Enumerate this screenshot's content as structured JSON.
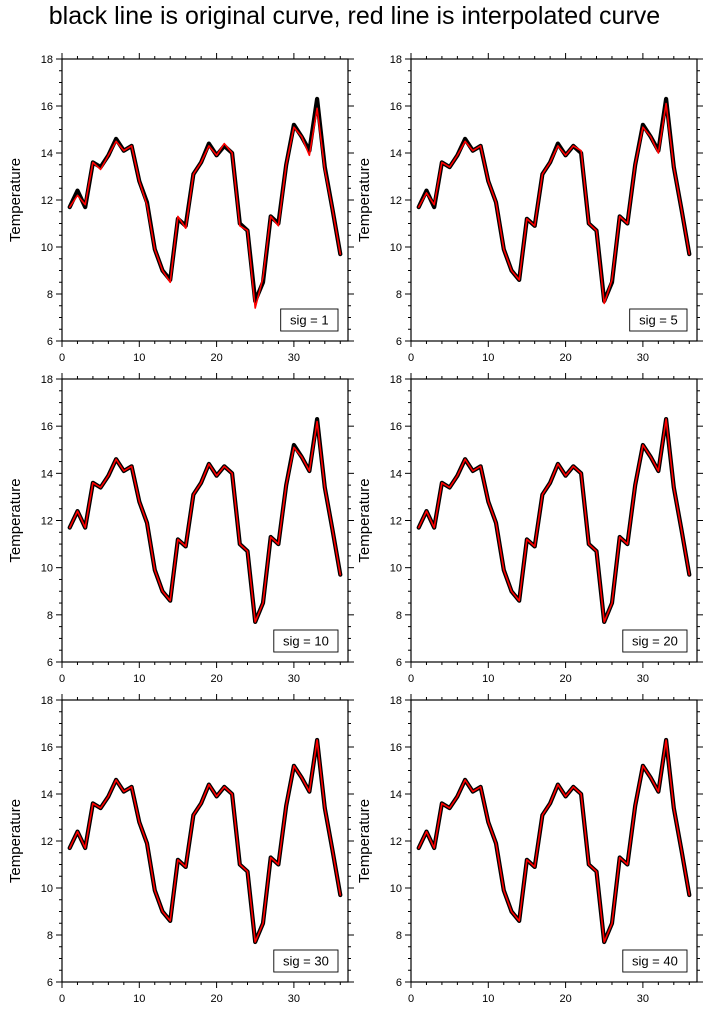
{
  "title": "black line is original curve, red line is interpolated curve",
  "colors": {
    "original": "#000000",
    "interpolated": "#ff0000"
  },
  "chart_data": [
    {
      "type": "line",
      "label": "sig = 1",
      "ylabel": "Temperature",
      "xlim": [
        0,
        37
      ],
      "ylim": [
        6,
        18
      ],
      "xticks": [
        0,
        10,
        20,
        30
      ],
      "yticks": [
        6,
        8,
        10,
        12,
        14,
        16,
        18
      ],
      "series": [
        {
          "role": "original",
          "x": [
            1,
            2,
            3,
            4,
            5,
            6,
            7,
            8,
            9,
            10,
            11,
            12,
            13,
            14,
            15,
            16,
            17,
            18,
            19,
            20,
            21,
            22,
            23,
            24,
            25,
            26,
            27,
            28,
            29,
            30,
            31,
            32,
            33,
            34,
            35,
            36
          ],
          "values": [
            11.7,
            12.4,
            11.7,
            13.6,
            13.4,
            13.9,
            14.6,
            14.1,
            14.3,
            12.8,
            11.9,
            9.9,
            9.0,
            8.6,
            11.2,
            10.9,
            13.1,
            13.6,
            14.4,
            13.9,
            14.3,
            14.0,
            11.0,
            10.7,
            7.7,
            8.5,
            11.3,
            11.0,
            13.5,
            15.2,
            14.7,
            14.1,
            16.3,
            13.4,
            11.6,
            9.7
          ]
        },
        {
          "role": "interpolated",
          "x": [
            1,
            2,
            3,
            4,
            5,
            6,
            7,
            8,
            9,
            10,
            11,
            12,
            13,
            14,
            15,
            16,
            17,
            18,
            19,
            20,
            21,
            22,
            23,
            24,
            25,
            26,
            27,
            28,
            29,
            30,
            31,
            32,
            33,
            34,
            35,
            36
          ],
          "values": [
            11.7,
            12.2,
            11.8,
            13.6,
            13.3,
            13.9,
            14.5,
            14.1,
            14.3,
            12.8,
            11.8,
            9.9,
            9.0,
            8.5,
            11.3,
            10.8,
            13.1,
            13.6,
            14.3,
            13.9,
            14.4,
            14.0,
            10.9,
            10.7,
            7.4,
            8.7,
            11.3,
            10.9,
            13.5,
            15.1,
            14.7,
            13.9,
            15.9,
            13.3,
            11.6,
            9.7
          ]
        }
      ]
    },
    {
      "type": "line",
      "label": "sig = 5",
      "ylabel": "Temperature",
      "xlim": [
        0,
        37
      ],
      "ylim": [
        6,
        18
      ],
      "xticks": [
        0,
        10,
        20,
        30
      ],
      "yticks": [
        6,
        8,
        10,
        12,
        14,
        16,
        18
      ],
      "series": [
        {
          "role": "original",
          "x": [
            1,
            2,
            3,
            4,
            5,
            6,
            7,
            8,
            9,
            10,
            11,
            12,
            13,
            14,
            15,
            16,
            17,
            18,
            19,
            20,
            21,
            22,
            23,
            24,
            25,
            26,
            27,
            28,
            29,
            30,
            31,
            32,
            33,
            34,
            35,
            36
          ],
          "values": [
            11.7,
            12.4,
            11.7,
            13.6,
            13.4,
            13.9,
            14.6,
            14.1,
            14.3,
            12.8,
            11.9,
            9.9,
            9.0,
            8.6,
            11.2,
            10.9,
            13.1,
            13.6,
            14.4,
            13.9,
            14.3,
            14.0,
            11.0,
            10.7,
            7.7,
            8.5,
            11.3,
            11.0,
            13.5,
            15.2,
            14.7,
            14.1,
            16.3,
            13.4,
            11.6,
            9.7
          ]
        },
        {
          "role": "interpolated",
          "x": [
            1,
            2,
            3,
            4,
            5,
            6,
            7,
            8,
            9,
            10,
            11,
            12,
            13,
            14,
            15,
            16,
            17,
            18,
            19,
            20,
            21,
            22,
            23,
            24,
            25,
            26,
            27,
            28,
            29,
            30,
            31,
            32,
            33,
            34,
            35,
            36
          ],
          "values": [
            11.7,
            12.3,
            11.8,
            13.6,
            13.4,
            13.9,
            14.5,
            14.1,
            14.3,
            12.8,
            11.9,
            9.9,
            9.0,
            8.6,
            11.2,
            10.9,
            13.1,
            13.6,
            14.3,
            13.9,
            14.3,
            14.1,
            11.0,
            10.7,
            7.6,
            8.6,
            11.3,
            11.0,
            13.5,
            15.1,
            14.7,
            14.0,
            16.1,
            13.4,
            11.6,
            9.7
          ]
        }
      ]
    },
    {
      "type": "line",
      "label": "sig = 10",
      "ylabel": "Temperature",
      "xlim": [
        0,
        37
      ],
      "ylim": [
        6,
        18
      ],
      "xticks": [
        0,
        10,
        20,
        30
      ],
      "yticks": [
        6,
        8,
        10,
        12,
        14,
        16,
        18
      ],
      "series": [
        {
          "role": "original",
          "x": [
            1,
            2,
            3,
            4,
            5,
            6,
            7,
            8,
            9,
            10,
            11,
            12,
            13,
            14,
            15,
            16,
            17,
            18,
            19,
            20,
            21,
            22,
            23,
            24,
            25,
            26,
            27,
            28,
            29,
            30,
            31,
            32,
            33,
            34,
            35,
            36
          ],
          "values": [
            11.7,
            12.4,
            11.7,
            13.6,
            13.4,
            13.9,
            14.6,
            14.1,
            14.3,
            12.8,
            11.9,
            9.9,
            9.0,
            8.6,
            11.2,
            10.9,
            13.1,
            13.6,
            14.4,
            13.9,
            14.3,
            14.0,
            11.0,
            10.7,
            7.7,
            8.5,
            11.3,
            11.0,
            13.5,
            15.2,
            14.7,
            14.1,
            16.3,
            13.4,
            11.6,
            9.7
          ]
        },
        {
          "role": "interpolated",
          "x": [
            1,
            2,
            3,
            4,
            5,
            6,
            7,
            8,
            9,
            10,
            11,
            12,
            13,
            14,
            15,
            16,
            17,
            18,
            19,
            20,
            21,
            22,
            23,
            24,
            25,
            26,
            27,
            28,
            29,
            30,
            31,
            32,
            33,
            34,
            35,
            36
          ],
          "values": [
            11.7,
            12.4,
            11.7,
            13.6,
            13.4,
            13.9,
            14.6,
            14.1,
            14.3,
            12.8,
            11.9,
            9.9,
            9.0,
            8.6,
            11.2,
            10.9,
            13.1,
            13.6,
            14.4,
            13.9,
            14.3,
            14.0,
            11.0,
            10.7,
            7.7,
            8.5,
            11.3,
            11.0,
            13.5,
            15.1,
            14.7,
            14.1,
            16.2,
            13.4,
            11.6,
            9.7
          ]
        }
      ]
    },
    {
      "type": "line",
      "label": "sig = 20",
      "ylabel": "Temperature",
      "xlim": [
        0,
        37
      ],
      "ylim": [
        6,
        18
      ],
      "xticks": [
        0,
        10,
        20,
        30
      ],
      "yticks": [
        6,
        8,
        10,
        12,
        14,
        16,
        18
      ],
      "series": [
        {
          "role": "original",
          "x": [
            1,
            2,
            3,
            4,
            5,
            6,
            7,
            8,
            9,
            10,
            11,
            12,
            13,
            14,
            15,
            16,
            17,
            18,
            19,
            20,
            21,
            22,
            23,
            24,
            25,
            26,
            27,
            28,
            29,
            30,
            31,
            32,
            33,
            34,
            35,
            36
          ],
          "values": [
            11.7,
            12.4,
            11.7,
            13.6,
            13.4,
            13.9,
            14.6,
            14.1,
            14.3,
            12.8,
            11.9,
            9.9,
            9.0,
            8.6,
            11.2,
            10.9,
            13.1,
            13.6,
            14.4,
            13.9,
            14.3,
            14.0,
            11.0,
            10.7,
            7.7,
            8.5,
            11.3,
            11.0,
            13.5,
            15.2,
            14.7,
            14.1,
            16.3,
            13.4,
            11.6,
            9.7
          ]
        },
        {
          "role": "interpolated",
          "x": [
            1,
            2,
            3,
            4,
            5,
            6,
            7,
            8,
            9,
            10,
            11,
            12,
            13,
            14,
            15,
            16,
            17,
            18,
            19,
            20,
            21,
            22,
            23,
            24,
            25,
            26,
            27,
            28,
            29,
            30,
            31,
            32,
            33,
            34,
            35,
            36
          ],
          "values": [
            11.7,
            12.4,
            11.7,
            13.6,
            13.4,
            13.9,
            14.6,
            14.1,
            14.3,
            12.8,
            11.9,
            9.9,
            9.0,
            8.6,
            11.2,
            10.9,
            13.1,
            13.6,
            14.4,
            13.9,
            14.3,
            14.0,
            11.0,
            10.7,
            7.7,
            8.5,
            11.3,
            11.0,
            13.5,
            15.2,
            14.7,
            14.1,
            16.3,
            13.4,
            11.6,
            9.7
          ]
        }
      ]
    },
    {
      "type": "line",
      "label": "sig = 30",
      "ylabel": "Temperature",
      "xlim": [
        0,
        37
      ],
      "ylim": [
        6,
        18
      ],
      "xticks": [
        0,
        10,
        20,
        30
      ],
      "yticks": [
        6,
        8,
        10,
        12,
        14,
        16,
        18
      ],
      "series": [
        {
          "role": "original",
          "x": [
            1,
            2,
            3,
            4,
            5,
            6,
            7,
            8,
            9,
            10,
            11,
            12,
            13,
            14,
            15,
            16,
            17,
            18,
            19,
            20,
            21,
            22,
            23,
            24,
            25,
            26,
            27,
            28,
            29,
            30,
            31,
            32,
            33,
            34,
            35,
            36
          ],
          "values": [
            11.7,
            12.4,
            11.7,
            13.6,
            13.4,
            13.9,
            14.6,
            14.1,
            14.3,
            12.8,
            11.9,
            9.9,
            9.0,
            8.6,
            11.2,
            10.9,
            13.1,
            13.6,
            14.4,
            13.9,
            14.3,
            14.0,
            11.0,
            10.7,
            7.7,
            8.5,
            11.3,
            11.0,
            13.5,
            15.2,
            14.7,
            14.1,
            16.3,
            13.4,
            11.6,
            9.7
          ]
        },
        {
          "role": "interpolated",
          "x": [
            1,
            2,
            3,
            4,
            5,
            6,
            7,
            8,
            9,
            10,
            11,
            12,
            13,
            14,
            15,
            16,
            17,
            18,
            19,
            20,
            21,
            22,
            23,
            24,
            25,
            26,
            27,
            28,
            29,
            30,
            31,
            32,
            33,
            34,
            35,
            36
          ],
          "values": [
            11.7,
            12.4,
            11.7,
            13.6,
            13.4,
            13.9,
            14.6,
            14.1,
            14.3,
            12.8,
            11.9,
            9.9,
            9.0,
            8.6,
            11.2,
            10.9,
            13.1,
            13.6,
            14.4,
            13.9,
            14.3,
            14.0,
            11.0,
            10.7,
            7.7,
            8.5,
            11.3,
            11.0,
            13.5,
            15.2,
            14.7,
            14.1,
            16.3,
            13.4,
            11.6,
            9.7
          ]
        }
      ]
    },
    {
      "type": "line",
      "label": "sig = 40",
      "ylabel": "Temperature",
      "xlim": [
        0,
        37
      ],
      "ylim": [
        6,
        18
      ],
      "xticks": [
        0,
        10,
        20,
        30
      ],
      "yticks": [
        6,
        8,
        10,
        12,
        14,
        16,
        18
      ],
      "series": [
        {
          "role": "original",
          "x": [
            1,
            2,
            3,
            4,
            5,
            6,
            7,
            8,
            9,
            10,
            11,
            12,
            13,
            14,
            15,
            16,
            17,
            18,
            19,
            20,
            21,
            22,
            23,
            24,
            25,
            26,
            27,
            28,
            29,
            30,
            31,
            32,
            33,
            34,
            35,
            36
          ],
          "values": [
            11.7,
            12.4,
            11.7,
            13.6,
            13.4,
            13.9,
            14.6,
            14.1,
            14.3,
            12.8,
            11.9,
            9.9,
            9.0,
            8.6,
            11.2,
            10.9,
            13.1,
            13.6,
            14.4,
            13.9,
            14.3,
            14.0,
            11.0,
            10.7,
            7.7,
            8.5,
            11.3,
            11.0,
            13.5,
            15.2,
            14.7,
            14.1,
            16.3,
            13.4,
            11.6,
            9.7
          ]
        },
        {
          "role": "interpolated",
          "x": [
            1,
            2,
            3,
            4,
            5,
            6,
            7,
            8,
            9,
            10,
            11,
            12,
            13,
            14,
            15,
            16,
            17,
            18,
            19,
            20,
            21,
            22,
            23,
            24,
            25,
            26,
            27,
            28,
            29,
            30,
            31,
            32,
            33,
            34,
            35,
            36
          ],
          "values": [
            11.7,
            12.4,
            11.7,
            13.6,
            13.4,
            13.9,
            14.6,
            14.1,
            14.3,
            12.8,
            11.9,
            9.9,
            9.0,
            8.6,
            11.2,
            10.9,
            13.1,
            13.6,
            14.4,
            13.9,
            14.3,
            14.0,
            11.0,
            10.7,
            7.7,
            8.5,
            11.3,
            11.0,
            13.5,
            15.2,
            14.7,
            14.1,
            16.3,
            13.4,
            11.6,
            9.7
          ]
        }
      ]
    }
  ]
}
